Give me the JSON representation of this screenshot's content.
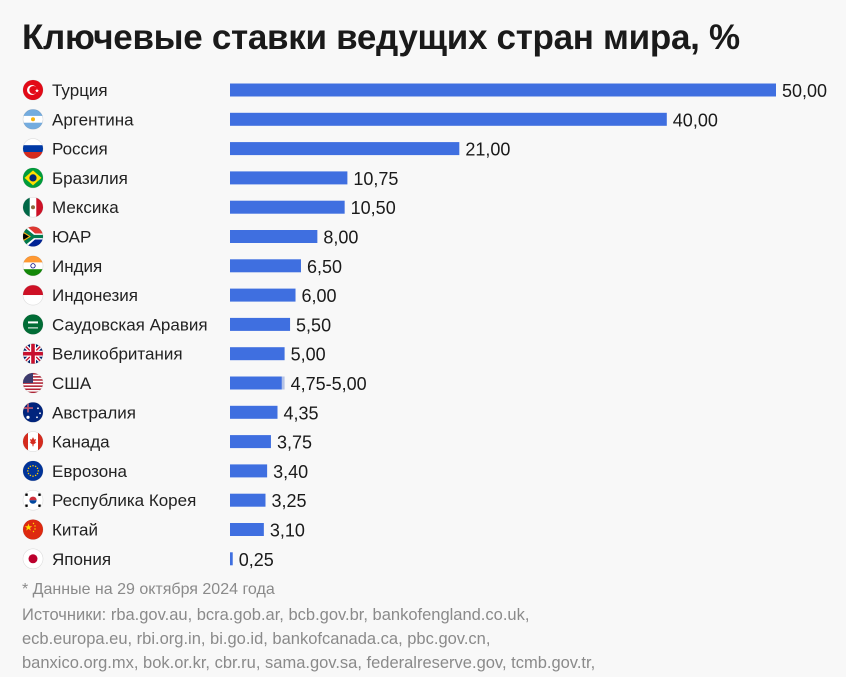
{
  "title": "Ключевые ставки ведущих стран мира, %",
  "note": "* Данные на 29 октября 2024 года",
  "sources": [
    "Источники: rba.gov.au, bcra.gob.ar, bcb.gov.br, bankofengland.co.uk,",
    "ecb.europa.eu, rbi.org.in, bi.go.id, bankofcanada.ca, pbc.gov.cn,",
    "banxico.org.mx, bok.or.kr, cbr.ru, sama.gov.sa, federalreserve.gov, tcmb.gov.tr,"
  ],
  "colors": {
    "bar": "#3f6fe0",
    "bar_range": "#b5c3e6",
    "background": "#f8f8f8"
  },
  "chart_data": {
    "type": "bar",
    "orientation": "horizontal",
    "title": "Ключевые ставки ведущих стран мира, %",
    "xlim": [
      0,
      50
    ],
    "grid": false,
    "legend": "none",
    "categories": [
      "Турция",
      "Аргентина",
      "Россия",
      "Бразилия",
      "Мексика",
      "ЮАР",
      "Индия",
      "Индонезия",
      "Саудовская Аравия",
      "Великобритания",
      "США",
      "Австралия",
      "Канада",
      "Еврозона",
      "Республика Корея",
      "Китай",
      "Япония"
    ],
    "values": [
      50,
      40,
      21,
      10.75,
      10.5,
      8,
      6.5,
      6,
      5.5,
      5,
      5,
      4.35,
      3.75,
      3.4,
      3.25,
      3.1,
      0.25
    ],
    "range_low": [
      null,
      null,
      null,
      null,
      null,
      null,
      null,
      null,
      null,
      null,
      4.75,
      null,
      null,
      null,
      null,
      null,
      null
    ],
    "data_labels": [
      "50,00",
      "40,00",
      "21,00",
      "10,75",
      "10,50",
      "8,00",
      "6,50",
      "6,00",
      "5,50",
      "5,00",
      "4,75-5,00",
      "4,35",
      "3,75",
      "3,40",
      "3,25",
      "3,10",
      "0,25"
    ],
    "flags": [
      "turkey-flag-icon",
      "argentina-flag-icon",
      "russia-flag-icon",
      "brazil-flag-icon",
      "mexico-flag-icon",
      "south-africa-flag-icon",
      "india-flag-icon",
      "indonesia-flag-icon",
      "saudi-arabia-flag-icon",
      "uk-flag-icon",
      "usa-flag-icon",
      "australia-flag-icon",
      "canada-flag-icon",
      "eurozone-flag-icon",
      "south-korea-flag-icon",
      "china-flag-icon",
      "japan-flag-icon"
    ]
  }
}
